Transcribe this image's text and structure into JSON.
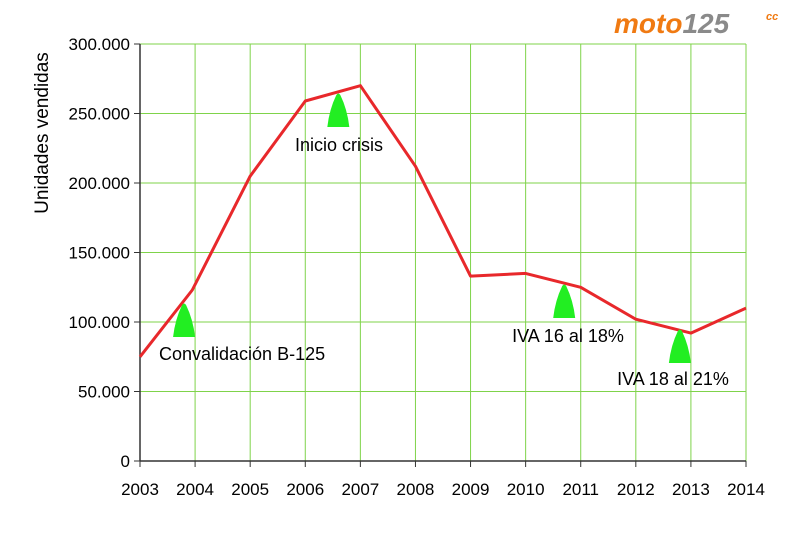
{
  "logo": {
    "text": "moto",
    "number": "125",
    "suffix": "cc"
  },
  "chart_data": {
    "type": "line",
    "ylabel": "Unidades vendidas",
    "xlabel": "",
    "x": [
      2003,
      2004,
      2005,
      2006,
      2007,
      2008,
      2009,
      2010,
      2011,
      2012,
      2013,
      2014
    ],
    "x_tick_labels": [
      "2003",
      "2004",
      "2005",
      "2006",
      "2007",
      "2008",
      "2009",
      "2010",
      "2011",
      "2012",
      "2013",
      "2014"
    ],
    "y_ticks": [
      0,
      50000,
      100000,
      150000,
      200000,
      250000,
      300000
    ],
    "y_tick_labels": [
      "0",
      "50.000",
      "100.000",
      "150.000",
      "200.000",
      "250.000",
      "300.000"
    ],
    "ylim": [
      0,
      300000
    ],
    "xlim": [
      2003,
      2014
    ],
    "grid": true,
    "line_color": "#e8282b",
    "grid_color": "#7fd34a",
    "marker_color": "#22ee22",
    "series": [
      {
        "points": [
          [
            2003,
            75000
          ],
          [
            2003.95,
            123000
          ],
          [
            2005,
            205000
          ],
          [
            2006,
            259000
          ],
          [
            2007,
            270000
          ],
          [
            2008,
            212000
          ],
          [
            2009,
            133000
          ],
          [
            2010,
            135000
          ],
          [
            2011,
            125000
          ],
          [
            2012,
            102000
          ],
          [
            2013,
            92000
          ],
          [
            2014,
            110000
          ]
        ]
      }
    ],
    "annotations": [
      {
        "text": "Convalidación B-125",
        "x": 2003.8
      },
      {
        "text": "Inicio crisis",
        "x": 2006.6
      },
      {
        "text": "IVA 16 al 18%",
        "x": 2010.7
      },
      {
        "text": "IVA 18 al 21%",
        "x": 2012.8
      }
    ]
  }
}
